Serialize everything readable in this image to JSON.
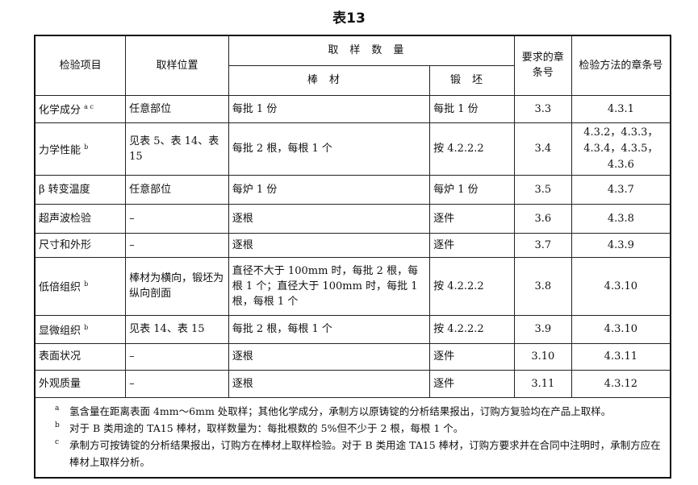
{
  "title": "表13",
  "headers": {
    "item": "检验项目",
    "location": "取样位置",
    "quantity": "取样数量",
    "bar": "棒材",
    "forging": "锻坯",
    "req_clause": "要求的章条号",
    "method_clause": "检验方法的章条号"
  },
  "rows": [
    {
      "item": "化学成分",
      "sup": "a c",
      "location": "任意部位",
      "bar": "每批 1 份",
      "forging": "每批 1 份",
      "req": "3.3",
      "method": "4.3.1"
    },
    {
      "item": "力学性能",
      "sup": "b",
      "location": "见表 5、表 14、表 15",
      "bar": "每批 2 根，每根 1 个",
      "forging": "按 4.2.2.2",
      "req": "3.4",
      "method": "4.3.2，4.3.3，4.3.4，4.3.5，4.3.6"
    },
    {
      "item": "β 转变温度",
      "sup": "",
      "location": "任意部位",
      "bar": "每炉 1 份",
      "forging": "每炉 1 份",
      "req": "3.5",
      "method": "4.3.7"
    },
    {
      "item": "超声波检验",
      "sup": "",
      "location": "–",
      "bar": "逐根",
      "forging": "逐件",
      "req": "3.6",
      "method": "4.3.8"
    },
    {
      "item": "尺寸和外形",
      "sup": "",
      "location": "–",
      "bar": "逐根",
      "forging": "逐件",
      "req": "3.7",
      "method": "4.3.9"
    },
    {
      "item": "低倍组织",
      "sup": "b",
      "location": "棒材为横向，锻坯为纵向剖面",
      "bar": "直径不大于 100mm 时，每批 2 根，每根 1 个；直径大于 100mm 时，每批 1 根，每根 1 个",
      "forging": "按 4.2.2.2",
      "req": "3.8",
      "method": "4.3.10"
    },
    {
      "item": "显微组织",
      "sup": "b",
      "location": "见表 14、表 15",
      "bar": "每批 2 根，每根 1 个",
      "forging": "按 4.2.2.2",
      "req": "3.9",
      "method": "4.3.10"
    },
    {
      "item": "表面状况",
      "sup": "",
      "location": "–",
      "bar": "逐根",
      "forging": "逐件",
      "req": "3.10",
      "method": "4.3.11"
    },
    {
      "item": "外观质量",
      "sup": "",
      "location": "–",
      "bar": "逐根",
      "forging": "逐件",
      "req": "3.11",
      "method": "4.3.12"
    }
  ],
  "notes": [
    {
      "mark": "a",
      "text": "氢含量在距离表面 4mm～6mm 处取样；其他化学成分，承制方以原铸锭的分析结果报出，订购方复验均在产品上取样。"
    },
    {
      "mark": "b",
      "text": "对于 B 类用途的 TA15 棒材，取样数量为：每批根数的 5%但不少于 2 根，每根 1 个。"
    },
    {
      "mark": "c",
      "text": "承制方可按铸锭的分析结果报出，订购方在棒材上取样检验。对于 B 类用途 TA15 棒材，订购方要求并在合同中注明时，承制方应在棒材上取样分析。"
    }
  ]
}
